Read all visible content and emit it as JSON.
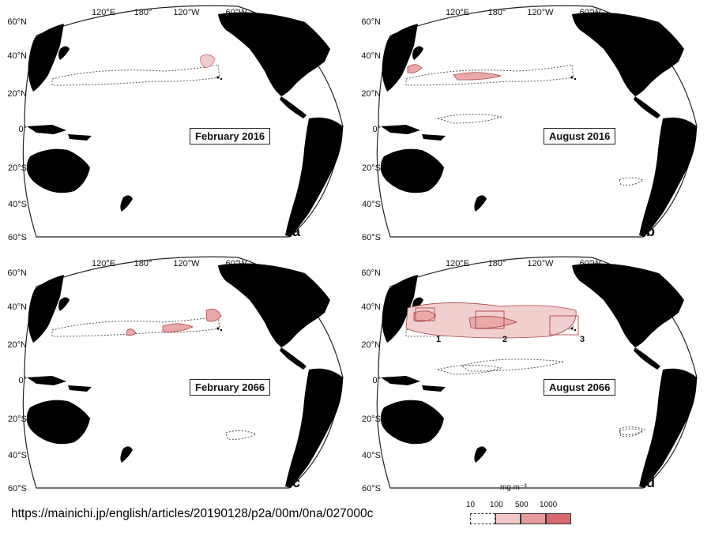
{
  "panels": [
    {
      "title": "February 2016",
      "letter": "a"
    },
    {
      "title": "August 2016",
      "letter": "b"
    },
    {
      "title": "February 2066",
      "letter": "c"
    },
    {
      "title": "August 2066",
      "letter": "d"
    }
  ],
  "lon_labels": [
    "120°E",
    "180°",
    "120°W",
    "60°W"
  ],
  "lat_labels": [
    "60°N",
    "40°N",
    "20°N",
    "0°",
    "20°S",
    "40°S",
    "60°S"
  ],
  "region_labels": [
    "1",
    "2",
    "3"
  ],
  "legend": {
    "unit": "mg m⁻³",
    "ticks": [
      "10",
      "100",
      "500",
      "1000"
    ],
    "colors": [
      "#ffffff",
      "#f2c9c9",
      "#e79a9a",
      "#d96a6a"
    ]
  },
  "source_url": "https://mainichi.jp/english/articles/20190128/p2a/00m/0na/027000c"
}
